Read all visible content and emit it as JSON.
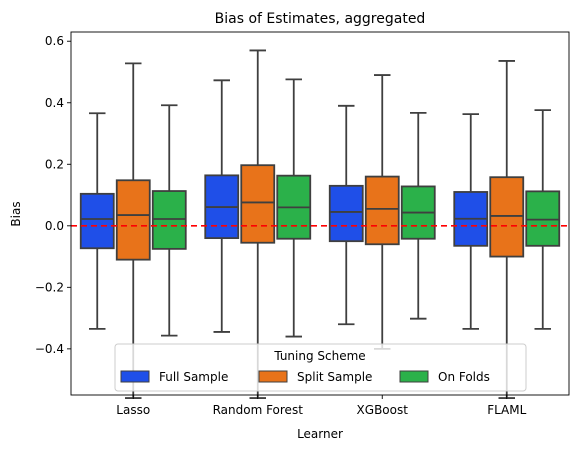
{
  "chart_data": {
    "type": "box",
    "title": "Bias of Estimates, aggregated",
    "xlabel": "Learner",
    "ylabel": "Bias",
    "categories": [
      "Lasso",
      "Random Forest",
      "XGBoost",
      "FLAML"
    ],
    "ylim": [
      -0.55,
      0.63
    ],
    "yticks": [
      -0.4,
      -0.2,
      0.0,
      0.2,
      0.4,
      0.6
    ],
    "ytick_labels": [
      "−0.4",
      "−0.2",
      "0.0",
      "0.2",
      "0.4",
      "0.6"
    ],
    "reference_line": {
      "y": 0.0,
      "color": "#ff0000",
      "style": "dashed"
    },
    "legend": {
      "title": "Tuning Scheme",
      "placement": "lower-center"
    },
    "series": [
      {
        "name": "Full Sample",
        "color": "#1f4fe8",
        "boxes": [
          {
            "whislo": -0.335,
            "q1": -0.073,
            "med": 0.022,
            "q3": 0.104,
            "whishi": 0.366
          },
          {
            "whislo": -0.345,
            "q1": -0.04,
            "med": 0.061,
            "q3": 0.164,
            "whishi": 0.473
          },
          {
            "whislo": -0.32,
            "q1": -0.05,
            "med": 0.045,
            "q3": 0.13,
            "whishi": 0.39
          },
          {
            "whislo": -0.335,
            "q1": -0.065,
            "med": 0.023,
            "q3": 0.11,
            "whishi": 0.363
          }
        ]
      },
      {
        "name": "Split Sample",
        "color": "#e8731a",
        "boxes": [
          {
            "whislo": -0.56,
            "q1": -0.11,
            "med": 0.035,
            "q3": 0.148,
            "whishi": 0.528
          },
          {
            "whislo": -0.56,
            "q1": -0.055,
            "med": 0.076,
            "q3": 0.197,
            "whishi": 0.57
          },
          {
            "whislo": -0.4,
            "q1": -0.06,
            "med": 0.055,
            "q3": 0.16,
            "whishi": 0.49
          },
          {
            "whislo": -0.56,
            "q1": -0.1,
            "med": 0.032,
            "q3": 0.158,
            "whishi": 0.536
          }
        ]
      },
      {
        "name": "On Folds",
        "color": "#2bb14a",
        "boxes": [
          {
            "whislo": -0.357,
            "q1": -0.075,
            "med": 0.022,
            "q3": 0.113,
            "whishi": 0.392
          },
          {
            "whislo": -0.36,
            "q1": -0.042,
            "med": 0.06,
            "q3": 0.163,
            "whishi": 0.476
          },
          {
            "whislo": -0.302,
            "q1": -0.042,
            "med": 0.043,
            "q3": 0.128,
            "whishi": 0.367
          },
          {
            "whislo": -0.335,
            "q1": -0.065,
            "med": 0.02,
            "q3": 0.112,
            "whishi": 0.376
          }
        ]
      }
    ]
  }
}
